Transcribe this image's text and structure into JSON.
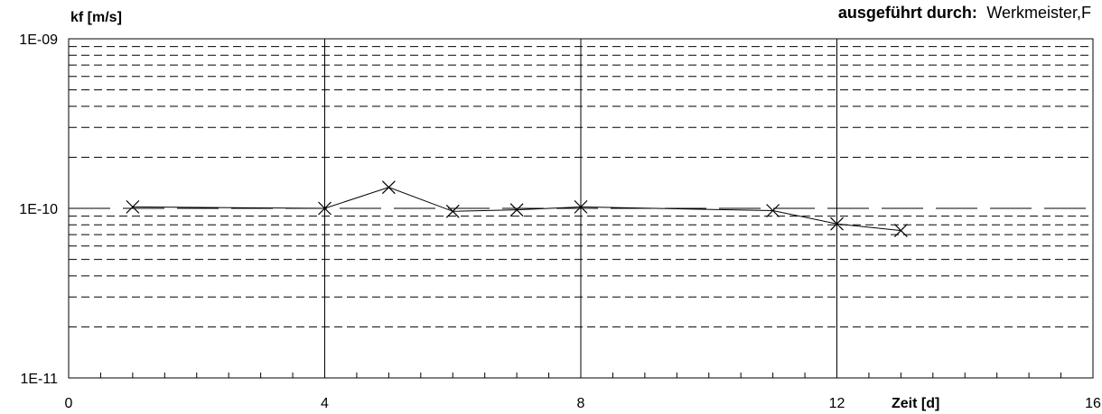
{
  "header": {
    "label": "ausgeführt durch:",
    "value": "Werkmeister,F"
  },
  "chart_data": {
    "type": "line",
    "title": "",
    "ylabel": "kf [m/s]",
    "xlabel": "Zeit [d]",
    "yscale": "log",
    "xlim": [
      0,
      16
    ],
    "ylim": [
      1e-11,
      1e-09
    ],
    "x_ticks": [
      "0",
      "4",
      "8",
      "12",
      "16"
    ],
    "y_ticks": [
      "1E-11",
      "1E-10",
      "1E-09"
    ],
    "grid": true,
    "series": [
      {
        "marker": "x",
        "x": [
          1,
          4,
          5,
          6,
          7,
          8,
          11,
          12,
          13
        ],
        "y": [
          1.02e-10,
          1e-10,
          1.33e-10,
          9.6e-11,
          9.8e-11,
          1.02e-10,
          9.7e-11,
          8.1e-11,
          7.4e-11
        ]
      }
    ]
  }
}
